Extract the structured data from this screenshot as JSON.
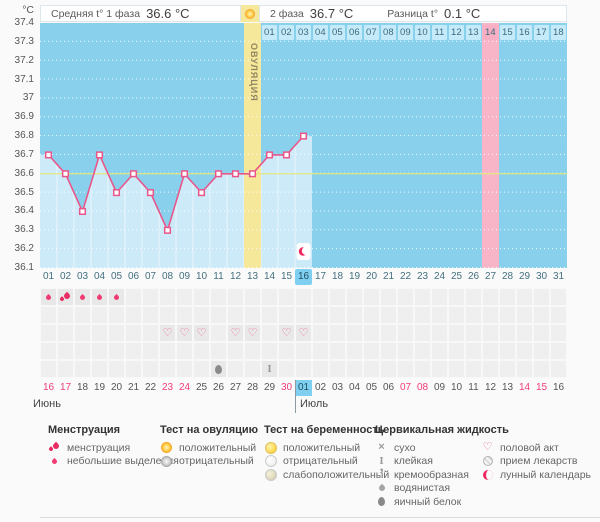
{
  "header": {
    "unit_label": "°C",
    "phase1_label": "Средняя t° 1 фаза",
    "phase1_value": "36.6 °C",
    "phase2_label": "2 фаза",
    "phase2_value": "36.7 °C",
    "diff_label": "Разница t°",
    "diff_value": "0.1 °C",
    "ovulation_label": "ОВУЛЯЦИЯ"
  },
  "colors": {
    "chart_bg": "#89d0ed",
    "area_fill": "#cdeaf9",
    "grid_dots": "#ffffff",
    "line": "#e9578a",
    "marker_fill": "#ffffff",
    "coverline": "#e2e67f",
    "ovulation_band": "#f6e89b",
    "period_band": "#f9b5c8",
    "today_highlight": "#7fd0f0",
    "dpo_pink": "#f8aec3",
    "weekend_red": "#f23d77",
    "moon_red": "#f0265e"
  },
  "chart_data": {
    "type": "line",
    "title": "Basal body temperature chart, cycle days 1-31",
    "cycle_days": [
      1,
      2,
      3,
      4,
      5,
      6,
      7,
      8,
      9,
      10,
      11,
      12,
      13,
      14,
      15,
      16
    ],
    "values": [
      36.7,
      36.6,
      36.4,
      36.7,
      36.5,
      36.6,
      36.5,
      36.3,
      36.6,
      36.5,
      36.6,
      36.6,
      36.6,
      36.7,
      36.7,
      36.8
    ],
    "ylim": [
      36.1,
      37.4
    ],
    "yticks": [
      "37.4",
      "37.3",
      "37.2",
      "37.1",
      "37",
      "36.9",
      "36.8",
      "36.7",
      "36.6",
      "36.5",
      "36.4",
      "36.3",
      "36.2",
      "36.1"
    ],
    "x_days_total": 31,
    "coverline": 36.6,
    "ovulation_day": 13,
    "expected_period_day": 27,
    "today_cycle_day": 16,
    "moon_marker_day": 16,
    "grid": "dotted-horizontal-white",
    "legend_position": "bottom"
  },
  "dpo_row": {
    "labels": [
      "01",
      "02",
      "03",
      "04",
      "05",
      "06",
      "07",
      "08",
      "09",
      "10",
      "11",
      "12",
      "13",
      "14",
      "15",
      "16",
      "17",
      "18"
    ],
    "pink_label": "14"
  },
  "day_axis": {
    "labels": [
      "01",
      "02",
      "03",
      "04",
      "05",
      "06",
      "07",
      "08",
      "09",
      "10",
      "11",
      "12",
      "13",
      "14",
      "15",
      "16",
      "17",
      "18",
      "19",
      "20",
      "21",
      "22",
      "23",
      "24",
      "25",
      "26",
      "27",
      "28",
      "29",
      "30",
      "31"
    ],
    "today": "16"
  },
  "symbols": {
    "menstruation": [
      {
        "day": 1,
        "icon": "drop-small"
      },
      {
        "day": 2,
        "icon": "drops-heavy"
      },
      {
        "day": 3,
        "icon": "drop-small"
      },
      {
        "day": 4,
        "icon": "drop-small"
      },
      {
        "day": 5,
        "icon": "drop-small"
      }
    ],
    "intercourse_days": [
      8,
      9,
      10,
      12,
      13,
      15,
      16
    ],
    "cervical": [
      {
        "day": 11,
        "icon": "egg-white"
      },
      {
        "day": 14,
        "icon": "sticky"
      }
    ]
  },
  "date_row": {
    "cells": [
      {
        "label": "16",
        "red": true
      },
      {
        "label": "17",
        "red": true
      },
      {
        "label": "18"
      },
      {
        "label": "19"
      },
      {
        "label": "20"
      },
      {
        "label": "21"
      },
      {
        "label": "22"
      },
      {
        "label": "23",
        "red": true
      },
      {
        "label": "24",
        "red": true
      },
      {
        "label": "25"
      },
      {
        "label": "26"
      },
      {
        "label": "27"
      },
      {
        "label": "28"
      },
      {
        "label": "29"
      },
      {
        "label": "30",
        "red": true
      },
      {
        "label": "01",
        "today": true
      },
      {
        "label": "02"
      },
      {
        "label": "03"
      },
      {
        "label": "04"
      },
      {
        "label": "05"
      },
      {
        "label": "06"
      },
      {
        "label": "07",
        "red": true
      },
      {
        "label": "08",
        "red": true
      },
      {
        "label": "09"
      },
      {
        "label": "10"
      },
      {
        "label": "11"
      },
      {
        "label": "12"
      },
      {
        "label": "13"
      },
      {
        "label": "14",
        "red": true
      },
      {
        "label": "15",
        "red": true
      },
      {
        "label": "16"
      }
    ],
    "june_label": "Июнь",
    "july_label": "Июль"
  },
  "legend": {
    "sections": [
      {
        "title": "Менструация",
        "items": [
          {
            "icon": "drops-heavy",
            "label": "менструация"
          },
          {
            "icon": "drop-small",
            "label": "небольшие выделения"
          }
        ]
      },
      {
        "title": "Тест на овуляцию",
        "items": [
          {
            "icon": "sun-positive",
            "label": "положительный"
          },
          {
            "icon": "sun-negative",
            "label": "отрицательный"
          }
        ]
      },
      {
        "title": "Тест на беременность",
        "items": [
          {
            "icon": "preg-positive",
            "label": "положительный"
          },
          {
            "icon": "preg-negative",
            "label": "отрицательный"
          },
          {
            "icon": "preg-weak",
            "label": "слабоположительный"
          }
        ]
      },
      {
        "title": "Цервикальная жидкость",
        "items": [
          {
            "icon": "dry-cross",
            "label": "сухо"
          },
          {
            "icon": "sticky",
            "label": "клейкая"
          },
          {
            "icon": "creamy",
            "label": "кремообразная"
          },
          {
            "icon": "watery",
            "label": "водянистая"
          },
          {
            "icon": "egg-white",
            "label": "яичный белок"
          }
        ]
      },
      {
        "title": "",
        "items": [
          {
            "icon": "heart",
            "label": "половой акт"
          },
          {
            "icon": "pill",
            "label": "прием лекарств"
          },
          {
            "icon": "moon",
            "label": "лунный календарь"
          }
        ]
      }
    ]
  }
}
